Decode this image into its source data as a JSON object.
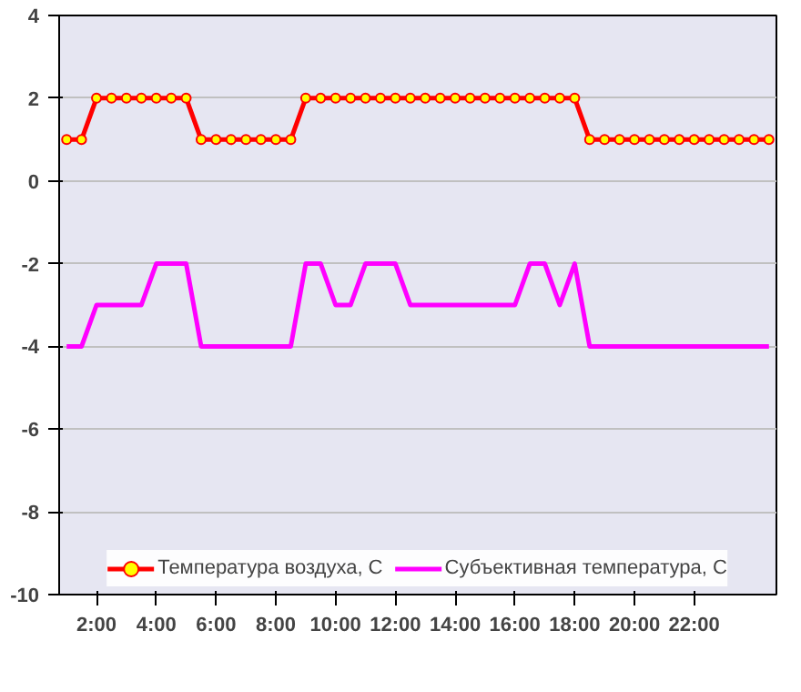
{
  "chart_data": {
    "type": "line",
    "x": [
      1,
      1.5,
      2,
      2.5,
      3,
      3.5,
      4,
      4.5,
      5,
      5.5,
      6,
      6.5,
      7,
      7.5,
      8,
      8.5,
      9,
      9.5,
      10,
      10.5,
      11,
      11.5,
      12,
      12.5,
      13,
      13.5,
      14,
      14.5,
      15,
      15.5,
      16,
      16.5,
      17,
      17.5,
      18,
      18.5,
      19,
      19.5,
      20,
      20.5,
      21,
      21.5,
      22,
      22.5,
      23,
      23.5,
      24,
      24.5
    ],
    "series": [
      {
        "name": "Температура воздуха, С",
        "color": "#ff0000",
        "marker": "circle",
        "values": [
          1,
          1,
          2,
          2,
          2,
          2,
          2,
          2,
          2,
          1,
          1,
          1,
          1,
          1,
          1,
          1,
          2,
          2,
          2,
          2,
          2,
          2,
          2,
          2,
          2,
          2,
          2,
          2,
          2,
          2,
          2,
          2,
          2,
          2,
          2,
          1,
          1,
          1,
          1,
          1,
          1,
          1,
          1,
          1,
          1,
          1,
          1,
          1
        ]
      },
      {
        "name": "Субъективная температура, С",
        "color": "#ff00ff",
        "marker": "none",
        "values": [
          -4,
          -4,
          -3,
          -3,
          -3,
          -3,
          -2,
          -2,
          -2,
          -4,
          -4,
          -4,
          -4,
          -4,
          -4,
          -4,
          -2,
          -2,
          -3,
          -3,
          -2,
          -2,
          -2,
          -3,
          -3,
          -3,
          -3,
          -3,
          -3,
          -3,
          -3,
          -2,
          -2,
          -3,
          -2,
          -4,
          -4,
          -4,
          -4,
          -4,
          -4,
          -4,
          -4,
          -4,
          -4,
          -4,
          -4,
          -4
        ]
      }
    ],
    "xlim": [
      0.75,
      24.75
    ],
    "xticks": [
      {
        "value": 2,
        "label": "2:00"
      },
      {
        "value": 4,
        "label": "4:00"
      },
      {
        "value": 6,
        "label": "6:00"
      },
      {
        "value": 8,
        "label": "8:00"
      },
      {
        "value": 10,
        "label": "10:00"
      },
      {
        "value": 12,
        "label": "12:00"
      },
      {
        "value": 14,
        "label": "14:00"
      },
      {
        "value": 16,
        "label": "16:00"
      },
      {
        "value": 18,
        "label": "18:00"
      },
      {
        "value": 20,
        "label": "20:00"
      },
      {
        "value": 22,
        "label": "22:00"
      }
    ],
    "ylim": [
      -10,
      4
    ],
    "yticks": [
      -10,
      -8,
      -6,
      -4,
      -2,
      0,
      2,
      4
    ],
    "grid": "y",
    "legend": "bottom"
  }
}
